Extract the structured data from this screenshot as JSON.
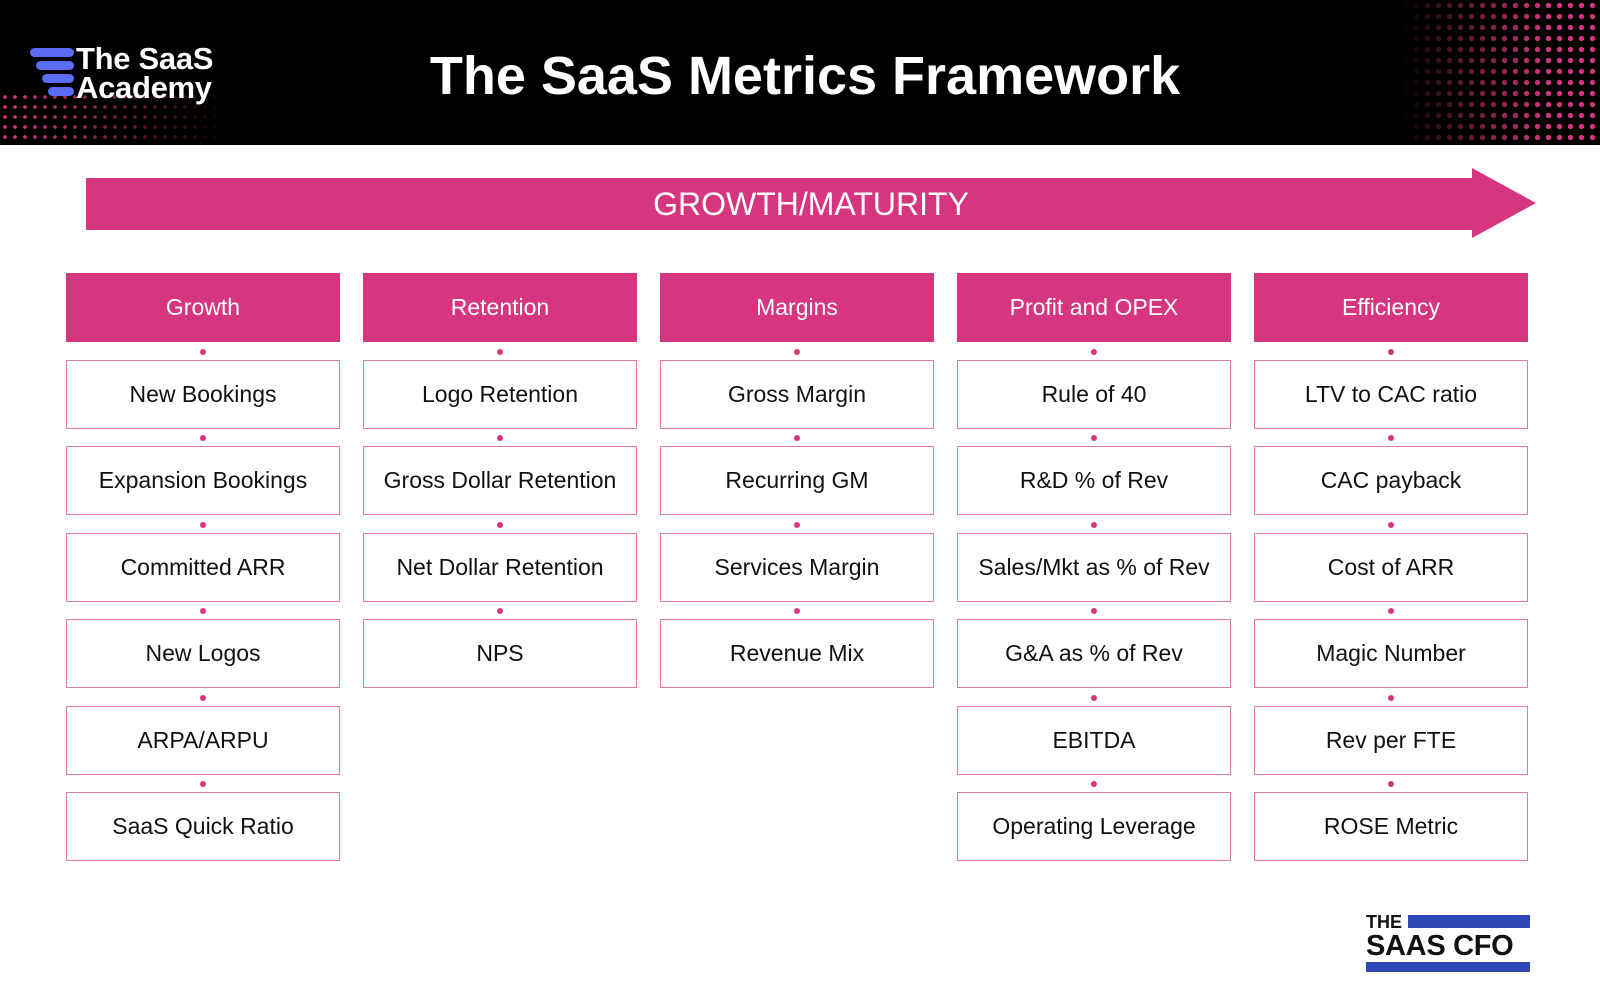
{
  "header": {
    "brand_line1": "The SaaS",
    "brand_line2": "Academy",
    "title": "The SaaS Metrics Framework"
  },
  "arrow": {
    "label": "GROWTH/MATURITY"
  },
  "columns": [
    {
      "title": "Growth",
      "items": [
        "New Bookings",
        "Expansion Bookings",
        "Committed ARR",
        "New Logos",
        "ARPA/ARPU",
        "SaaS Quick Ratio"
      ]
    },
    {
      "title": "Retention",
      "items": [
        "Logo Retention",
        "Gross Dollar Retention",
        "Net Dollar Retention",
        "NPS"
      ]
    },
    {
      "title": "Margins",
      "items": [
        "Gross Margin",
        "Recurring GM",
        "Services Margin",
        "Revenue Mix"
      ]
    },
    {
      "title": "Profit and OPEX",
      "items": [
        "Rule of 40",
        "R&D % of Rev",
        "Sales/Mkt as % of Rev",
        "G&A as % of Rev",
        "EBITDA",
        "Operating Leverage"
      ]
    },
    {
      "title": "Efficiency",
      "items": [
        "LTV to CAC ratio",
        "CAC payback",
        "Cost of ARR",
        "Magic Number",
        "Rev per FTE",
        "ROSE Metric"
      ]
    }
  ],
  "footer": {
    "logo_line1": "THE",
    "logo_line2": "SAAS CFO"
  },
  "colors": {
    "accent": "#d6357f",
    "header_bg": "#000000",
    "brand_blue": "#5b6cf5",
    "cfo_blue": "#2f47b5"
  }
}
